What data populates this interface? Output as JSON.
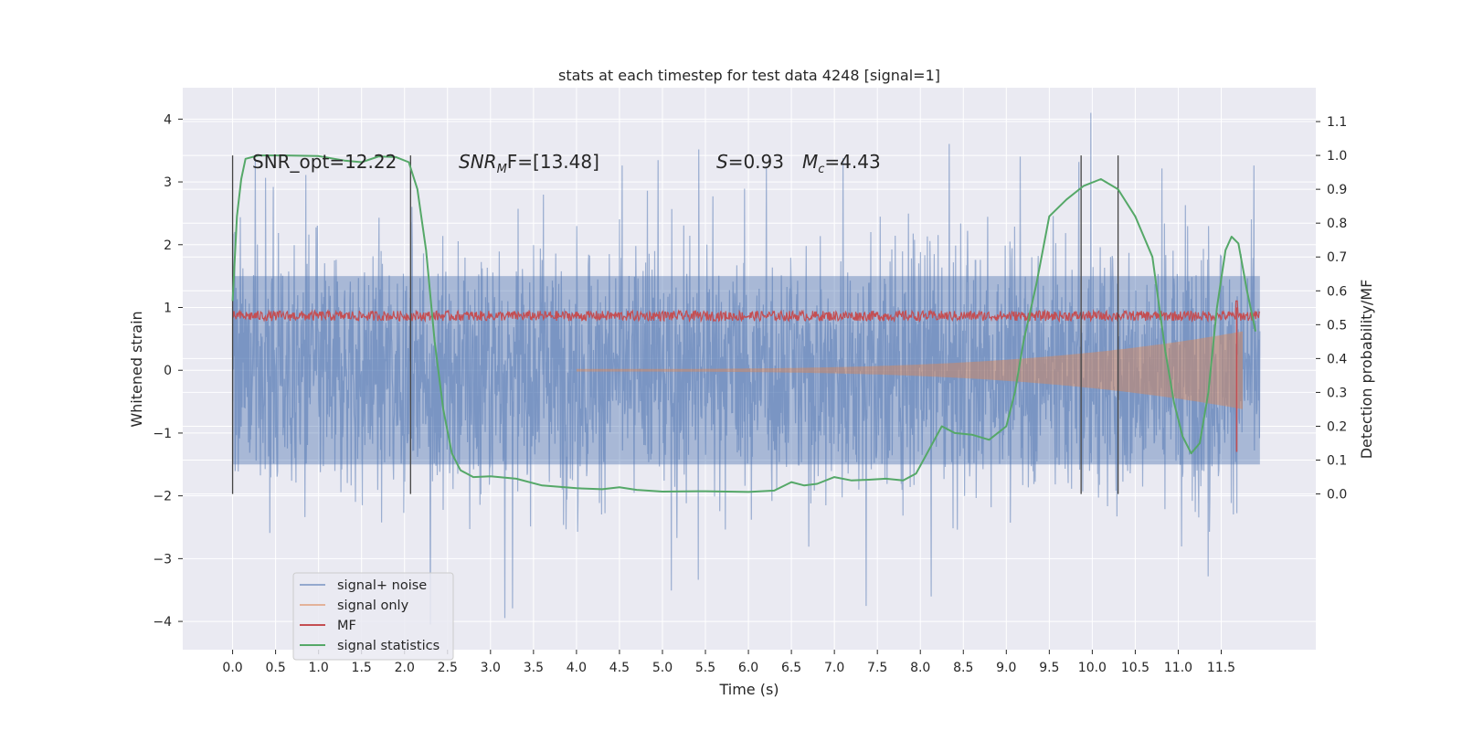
{
  "chart_data": {
    "type": "line",
    "title": "stats at each timestep for test data 4248 [signal=1]",
    "xlabel": "Time (s)",
    "ylabel": "Whitened strain",
    "y2label": "Detection probability/MF",
    "xlim": [
      -0.58,
      12.6
    ],
    "ylim": [
      -4.45,
      4.5
    ],
    "y2lim": [
      -0.46,
      1.2
    ],
    "xticks": [
      0.0,
      0.5,
      1.0,
      1.5,
      2.0,
      2.5,
      3.0,
      3.5,
      4.0,
      4.5,
      5.0,
      5.5,
      6.0,
      6.5,
      7.0,
      7.5,
      8.0,
      8.5,
      9.0,
      9.5,
      10.0,
      10.5,
      11.0,
      11.5
    ],
    "xtick_labels": [
      "0.0",
      "0.5",
      "1.0",
      "1.5",
      "2.0",
      "2.5",
      "3.0",
      "3.5",
      "4.0",
      "4.5",
      "5.0",
      "5.5",
      "6.0",
      "6.5",
      "7.0",
      "7.5",
      "8.0",
      "8.5",
      "9.0",
      "9.5",
      "10.0",
      "10.5",
      "11.0",
      "11.5"
    ],
    "yticks": [
      4,
      3,
      2,
      1,
      0,
      -1,
      -2,
      -3,
      -4
    ],
    "ytick_labels": [
      "4",
      "3",
      "2",
      "1",
      "0",
      "−1",
      "−2",
      "−3",
      "−4"
    ],
    "y2ticks": [
      1.1,
      1.0,
      0.9,
      0.8,
      0.7,
      0.6,
      0.5,
      0.4,
      0.3,
      0.2,
      0.1,
      0.0
    ],
    "y2tick_labels": [
      "1.1",
      "1.0",
      "0.9",
      "0.8",
      "0.7",
      "0.6",
      "0.5",
      "0.4",
      "0.3",
      "0.2",
      "0.1",
      "0.0"
    ],
    "grid": true,
    "legend_position": "lower-left",
    "legend": [
      {
        "label": "signal+ noise",
        "color": "#4c72b0"
      },
      {
        "label": "signal only",
        "color": "#dd8452"
      },
      {
        "label": "MF",
        "color": "#c44e52"
      },
      {
        "label": "signal statistics",
        "color": "#55a868"
      }
    ],
    "annotations": {
      "snr_opt": "SNR_opt=12.22",
      "snr_mf_main": "SNR",
      "snr_mf_sub": "M",
      "snr_mf_rest": "F=[13.48]",
      "s_main": "S",
      "s_rest": "=0.93",
      "mc_main": "M",
      "mc_sub": "c",
      "mc_rest": "=4.43"
    },
    "vertical_markers": [
      0.0,
      2.07,
      9.87,
      10.3
    ],
    "vertical_marker_range": [
      -0.0,
      1.0
    ],
    "noise_envelope": {
      "x_start": 0.0,
      "x_end": 11.95,
      "upper_approx": 2.3,
      "lower_approx": -2.3,
      "peak_max": 4.1,
      "peak_min": -4.05
    },
    "signal_only": {
      "x_start": 4.0,
      "x_end": 11.75,
      "max_amplitude": 0.6
    },
    "mf_series": {
      "x_start": 0.0,
      "x_end": 11.95,
      "baseline": 0.52,
      "spike_x": 11.68,
      "spike_y": 0.57
    },
    "signal_statistics": {
      "x": [
        0.0,
        0.05,
        0.1,
        0.15,
        0.3,
        0.6,
        1.0,
        1.3,
        1.5,
        1.7,
        1.9,
        2.05,
        2.15,
        2.25,
        2.35,
        2.45,
        2.55,
        2.65,
        2.8,
        3.0,
        3.3,
        3.6,
        4.0,
        4.3,
        4.5,
        4.7,
        5.0,
        5.5,
        6.0,
        6.3,
        6.5,
        6.65,
        6.8,
        7.0,
        7.2,
        7.4,
        7.6,
        7.8,
        7.95,
        8.1,
        8.25,
        8.4,
        8.6,
        8.8,
        9.0,
        9.1,
        9.2,
        9.35,
        9.5,
        9.7,
        9.9,
        10.1,
        10.3,
        10.5,
        10.7,
        10.85,
        10.95,
        11.05,
        11.15,
        11.25,
        11.35,
        11.45,
        11.55,
        11.62,
        11.7,
        11.8,
        11.9
      ],
      "y": [
        0.57,
        0.82,
        0.93,
        0.99,
        1.0,
        1.0,
        0.998,
        0.985,
        0.98,
        0.997,
        0.995,
        0.98,
        0.9,
        0.72,
        0.45,
        0.25,
        0.12,
        0.07,
        0.05,
        0.052,
        0.045,
        0.025,
        0.017,
        0.014,
        0.02,
        0.012,
        0.007,
        0.008,
        0.006,
        0.01,
        0.035,
        0.025,
        0.03,
        0.05,
        0.04,
        0.042,
        0.045,
        0.04,
        0.06,
        0.13,
        0.2,
        0.18,
        0.175,
        0.16,
        0.2,
        0.3,
        0.45,
        0.62,
        0.82,
        0.87,
        0.91,
        0.93,
        0.9,
        0.82,
        0.7,
        0.42,
        0.27,
        0.17,
        0.12,
        0.15,
        0.3,
        0.55,
        0.72,
        0.76,
        0.74,
        0.6,
        0.48
      ]
    }
  }
}
